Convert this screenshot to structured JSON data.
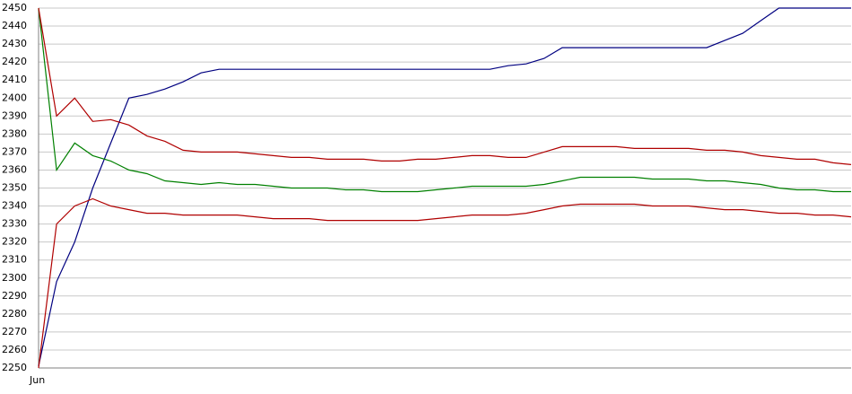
{
  "chart_data": {
    "type": "line",
    "categories": [
      "Jun",
      null,
      null,
      null,
      null,
      null,
      null,
      null,
      null,
      null,
      null,
      null,
      null,
      null,
      null,
      null,
      null,
      null,
      null,
      null,
      null,
      null,
      null,
      null,
      null,
      null,
      null,
      null,
      null,
      null,
      null,
      null,
      null,
      null,
      null,
      null,
      null,
      null,
      null,
      null,
      null,
      null,
      null,
      null,
      null,
      null
    ],
    "series": [
      {
        "color": "#000080",
        "values": [
          2251,
          2298,
          2320,
          2350,
          2375,
          2400,
          2402,
          2405,
          2409,
          2414,
          2416,
          2416,
          2416,
          2416,
          2416,
          2416,
          2416,
          2416,
          2416,
          2416,
          2416,
          2416,
          2416,
          2416,
          2416,
          2416,
          2418,
          2419,
          2422,
          2428,
          2428,
          2428,
          2428,
          2428,
          2428,
          2428,
          2428,
          2428,
          2432,
          2436,
          2443,
          2450,
          2450,
          2450,
          2450,
          2450
        ]
      },
      {
        "color": "#008000",
        "values": [
          2450,
          2360,
          2375,
          2368,
          2365,
          2360,
          2358,
          2354,
          2353,
          2352,
          2353,
          2352,
          2352,
          2351,
          2350,
          2350,
          2350,
          2349,
          2349,
          2348,
          2348,
          2348,
          2349,
          2350,
          2351,
          2351,
          2351,
          2351,
          2352,
          2354,
          2356,
          2356,
          2356,
          2356,
          2355,
          2355,
          2355,
          2354,
          2354,
          2353,
          2352,
          2350,
          2349,
          2349,
          2348,
          2348
        ]
      },
      {
        "color": "#b00000",
        "values": [
          2450,
          2390,
          2400,
          2387,
          2388,
          2385,
          2379,
          2376,
          2371,
          2370,
          2370,
          2370,
          2369,
          2368,
          2367,
          2367,
          2366,
          2366,
          2366,
          2365,
          2365,
          2366,
          2366,
          2367,
          2368,
          2368,
          2367,
          2367,
          2370,
          2373,
          2373,
          2373,
          2373,
          2372,
          2372,
          2372,
          2372,
          2371,
          2371,
          2370,
          2368,
          2367,
          2366,
          2366,
          2364,
          2363
        ]
      },
      {
        "color": "#b00000",
        "values": [
          2250,
          2330,
          2340,
          2344,
          2340,
          2338,
          2336,
          2336,
          2335,
          2335,
          2335,
          2335,
          2334,
          2333,
          2333,
          2333,
          2332,
          2332,
          2332,
          2332,
          2332,
          2332,
          2333,
          2334,
          2335,
          2335,
          2335,
          2336,
          2338,
          2340,
          2341,
          2341,
          2341,
          2341,
          2340,
          2340,
          2340,
          2339,
          2338,
          2338,
          2337,
          2336,
          2336,
          2335,
          2335,
          2334
        ]
      }
    ],
    "ylim": [
      2250,
      2450
    ],
    "yticks": [
      2250,
      2260,
      2270,
      2280,
      2290,
      2300,
      2310,
      2320,
      2330,
      2340,
      2350,
      2360,
      2370,
      2380,
      2390,
      2400,
      2410,
      2420,
      2430,
      2440,
      2450
    ],
    "grid": true
  }
}
